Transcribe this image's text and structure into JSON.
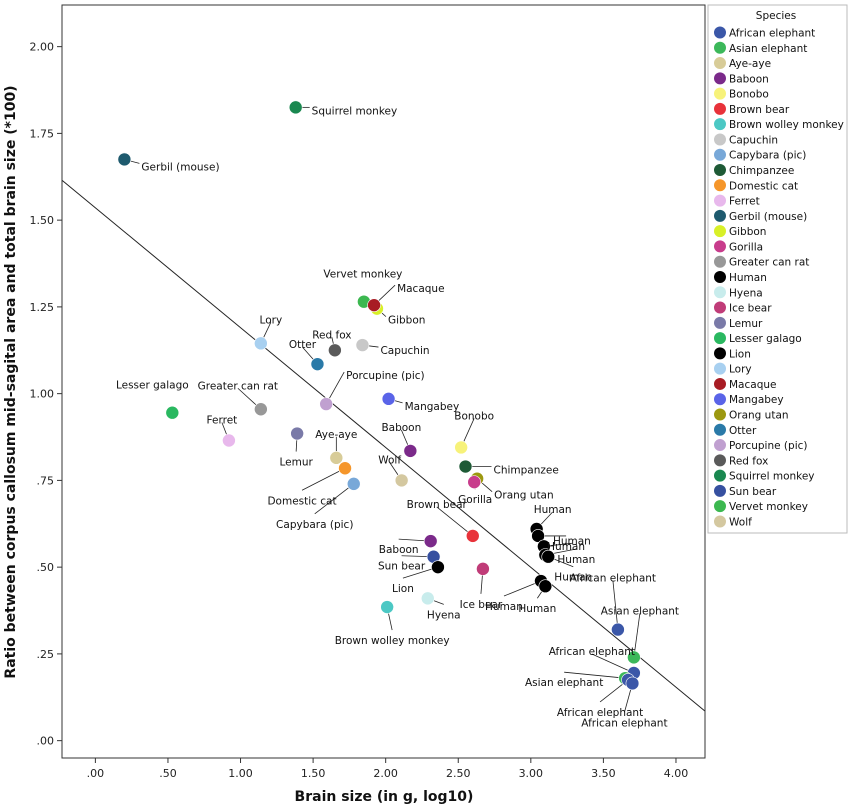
{
  "chart_data": {
    "type": "scatter",
    "xlabel": "Brain size (in g, log10)",
    "ylabel": "Ratio between corpus callosum mid-sagital area and total brain size (*100)",
    "xlim": [
      -0.23,
      4.2
    ],
    "ylim": [
      -0.05,
      2.12
    ],
    "xticks": [
      0,
      0.5,
      1,
      1.5,
      2,
      2.5,
      3,
      3.5,
      4
    ],
    "xtick_labels": [
      ".00",
      ".50",
      "1.00",
      "1.50",
      "2.00",
      "2.50",
      "3.00",
      "3.50",
      "4.00"
    ],
    "yticks": [
      0,
      0.25,
      0.5,
      0.75,
      1,
      1.25,
      1.5,
      1.75,
      2
    ],
    "ytick_labels": [
      ".00",
      ".25",
      ".50",
      ".75",
      "1.00",
      "1.25",
      "1.50",
      "1.75",
      "2.00"
    ],
    "fit_line": {
      "x": [
        -0.23,
        4.2
      ],
      "y": [
        1.615,
        0.085
      ]
    },
    "legend_title": "Species",
    "species": [
      {
        "name": "African elephant",
        "color": "#3b57a8"
      },
      {
        "name": "Asian elephant",
        "color": "#3cb85a"
      },
      {
        "name": "Aye-aye",
        "color": "#d8cc98"
      },
      {
        "name": "Baboon",
        "color": "#7b2a8a"
      },
      {
        "name": "Bonobo",
        "color": "#f7f27a"
      },
      {
        "name": "Brown bear",
        "color": "#e8323a"
      },
      {
        "name": "Brown wolley monkey",
        "color": "#4cc8c4"
      },
      {
        "name": "Capuchin",
        "color": "#c8c8c8"
      },
      {
        "name": "Capybara (pic)",
        "color": "#78a8d8"
      },
      {
        "name": "Chimpanzee",
        "color": "#1e5a36"
      },
      {
        "name": "Domestic cat",
        "color": "#f5962a"
      },
      {
        "name": "Ferret",
        "color": "#e8b8ec"
      },
      {
        "name": "Gerbil (mouse)",
        "color": "#1e5a6e"
      },
      {
        "name": "Gibbon",
        "color": "#d8f028"
      },
      {
        "name": "Gorilla",
        "color": "#c83c8c"
      },
      {
        "name": "Greater can rat",
        "color": "#989898"
      },
      {
        "name": "Human",
        "color": "#000000"
      },
      {
        "name": "Hyena",
        "color": "#c8ecec"
      },
      {
        "name": "Ice bear",
        "color": "#c03c78"
      },
      {
        "name": "Lemur",
        "color": "#7a7aa8"
      },
      {
        "name": "Lesser galago",
        "color": "#2ab860"
      },
      {
        "name": "Lion",
        "color": "#000000"
      },
      {
        "name": "Lory",
        "color": "#a8d0f0"
      },
      {
        "name": "Macaque",
        "color": "#a81c24"
      },
      {
        "name": "Mangabey",
        "color": "#5a64e8"
      },
      {
        "name": "Orang utan",
        "color": "#9c9810"
      },
      {
        "name": "Otter",
        "color": "#2a7aa8"
      },
      {
        "name": "Porcupine (pic)",
        "color": "#c0a0d0"
      },
      {
        "name": "Red fox",
        "color": "#5a5a5a"
      },
      {
        "name": "Squirrel monkey",
        "color": "#1a8850"
      },
      {
        "name": "Sun bear",
        "color": "#3650a0"
      },
      {
        "name": "Vervet monkey",
        "color": "#3cb850"
      },
      {
        "name": "Wolf",
        "color": "#d4c8a0"
      }
    ],
    "points": [
      {
        "species": "Squirrel monkey",
        "x": 1.38,
        "y": 1.825,
        "label": "Squirrel monkey"
      },
      {
        "species": "Gerbil (mouse)",
        "x": 0.2,
        "y": 1.675,
        "label": "Gerbil (mouse)"
      },
      {
        "species": "Vervet monkey",
        "x": 1.85,
        "y": 1.265,
        "label": "Vervet monkey"
      },
      {
        "species": "Gibbon",
        "x": 1.94,
        "y": 1.245,
        "label": "Gibbon"
      },
      {
        "species": "Macaque",
        "x": 1.92,
        "y": 1.255,
        "label": "Macaque"
      },
      {
        "species": "Lory",
        "x": 1.14,
        "y": 1.145,
        "label": "Lory"
      },
      {
        "species": "Capuchin",
        "x": 1.84,
        "y": 1.14,
        "label": "Capuchin"
      },
      {
        "species": "Red fox",
        "x": 1.65,
        "y": 1.125,
        "label": "Red fox"
      },
      {
        "species": "Otter",
        "x": 1.53,
        "y": 1.085,
        "label": "Otter"
      },
      {
        "species": "Mangabey",
        "x": 2.02,
        "y": 0.985,
        "label": "Mangabey"
      },
      {
        "species": "Porcupine (pic)",
        "x": 1.59,
        "y": 0.97,
        "label": "Porcupine (pic)"
      },
      {
        "species": "Greater can rat",
        "x": 1.14,
        "y": 0.955,
        "label": "Greater can rat"
      },
      {
        "species": "Lesser galago",
        "x": 0.53,
        "y": 0.945,
        "label": "Lesser galago"
      },
      {
        "species": "Lemur",
        "x": 1.39,
        "y": 0.885,
        "label": "Lemur"
      },
      {
        "species": "Ferret",
        "x": 0.92,
        "y": 0.865,
        "label": "Ferret"
      },
      {
        "species": "Baboon",
        "x": 2.17,
        "y": 0.835,
        "label": "Baboon"
      },
      {
        "species": "Bonobo",
        "x": 2.52,
        "y": 0.845,
        "label": "Bonobo"
      },
      {
        "species": "Aye-aye",
        "x": 1.66,
        "y": 0.815,
        "label": "Aye-aye"
      },
      {
        "species": "Chimpanzee",
        "x": 2.55,
        "y": 0.79,
        "label": "Chimpanzee"
      },
      {
        "species": "Domestic cat",
        "x": 1.72,
        "y": 0.785,
        "label": "Domestic cat"
      },
      {
        "species": "Orang utan",
        "x": 2.63,
        "y": 0.755,
        "label": "Orang utan"
      },
      {
        "species": "Wolf",
        "x": 2.11,
        "y": 0.75,
        "label": "Wolf"
      },
      {
        "species": "Gorilla",
        "x": 2.61,
        "y": 0.745,
        "label": "Gorilla"
      },
      {
        "species": "Capybara (pic)",
        "x": 1.78,
        "y": 0.74,
        "label": "Capybara (pic)"
      },
      {
        "species": "Human",
        "x": 3.04,
        "y": 0.61,
        "label": "Human"
      },
      {
        "species": "Human",
        "x": 3.05,
        "y": 0.59,
        "label": "Human"
      },
      {
        "species": "Human",
        "x": 3.09,
        "y": 0.56,
        "label": "Human"
      },
      {
        "species": "Human",
        "x": 3.1,
        "y": 0.535,
        "label": "Human"
      },
      {
        "species": "Human",
        "x": 3.12,
        "y": 0.53,
        "label": "Human"
      },
      {
        "species": "Human",
        "x": 3.07,
        "y": 0.46,
        "label": "Human"
      },
      {
        "species": "Human",
        "x": 3.1,
        "y": 0.445,
        "label": "Human"
      },
      {
        "species": "Brown bear",
        "x": 2.6,
        "y": 0.59,
        "label": "Brown bear"
      },
      {
        "species": "Baboon",
        "x": 2.31,
        "y": 0.575,
        "label": "Baboon"
      },
      {
        "species": "Sun bear",
        "x": 2.33,
        "y": 0.53,
        "label": "Sun bear"
      },
      {
        "species": "Lion",
        "x": 2.36,
        "y": 0.5,
        "label": "Lion"
      },
      {
        "species": "Ice bear",
        "x": 2.67,
        "y": 0.495,
        "label": "Ice bear"
      },
      {
        "species": "Hyena",
        "x": 2.29,
        "y": 0.41,
        "label": "Hyena"
      },
      {
        "species": "Brown wolley monkey",
        "x": 2.01,
        "y": 0.385,
        "label": "Brown wolley monkey"
      },
      {
        "species": "African elephant",
        "x": 3.6,
        "y": 0.32,
        "label": "African elephant"
      },
      {
        "species": "Asian elephant",
        "x": 3.71,
        "y": 0.24,
        "label": "Asian elephant"
      },
      {
        "species": "African elephant",
        "x": 3.71,
        "y": 0.195,
        "label": "African elephant"
      },
      {
        "species": "Asian elephant",
        "x": 3.65,
        "y": 0.18,
        "label": "Asian elephant"
      },
      {
        "species": "African elephant",
        "x": 3.67,
        "y": 0.175,
        "label": "African elephant"
      },
      {
        "species": "African elephant",
        "x": 3.7,
        "y": 0.165,
        "label": "African elephant"
      }
    ]
  }
}
